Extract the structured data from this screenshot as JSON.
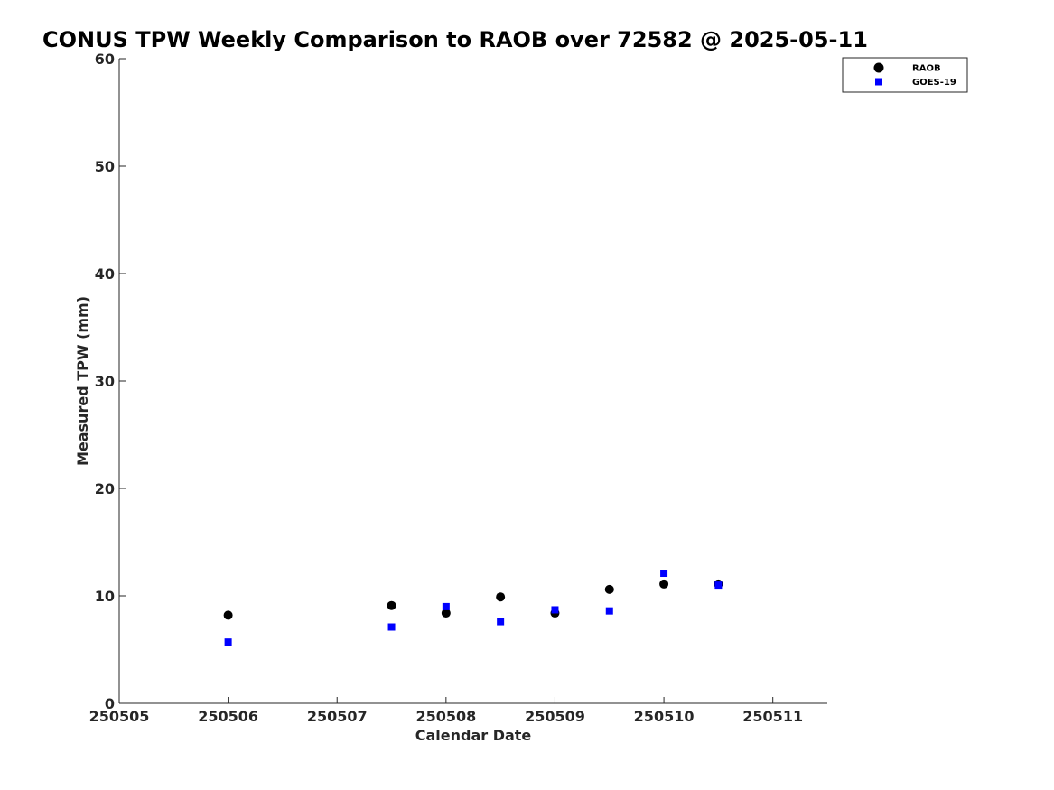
{
  "chart_data": {
    "type": "scatter",
    "title": "CONUS TPW Weekly Comparison to RAOB over 72582 @ 2025-05-11",
    "xlabel": "Calendar Date",
    "ylabel": "Measured TPW (mm)",
    "xlim": [
      250505,
      250511.5
    ],
    "ylim": [
      0,
      60
    ],
    "xticks": [
      250505,
      250506,
      250507,
      250508,
      250509,
      250510,
      250511
    ],
    "xtick_labels": [
      "250505",
      "250506",
      "250507",
      "250508",
      "250509",
      "250510",
      "250511"
    ],
    "yticks": [
      0,
      10,
      20,
      30,
      40,
      50,
      60
    ],
    "ytick_labels": [
      "0",
      "10",
      "20",
      "30",
      "40",
      "50",
      "60"
    ],
    "grid": false,
    "legend_position": "top-right",
    "series": [
      {
        "name": "RAOB",
        "marker": "circle",
        "color": "#000000",
        "x": [
          250506,
          250507.5,
          250508,
          250508.5,
          250509,
          250509.5,
          250510,
          250510.5
        ],
        "y": [
          8.2,
          9.1,
          8.4,
          9.9,
          8.4,
          10.6,
          11.1,
          11.1
        ]
      },
      {
        "name": "GOES-19",
        "marker": "square",
        "color": "#0000ff",
        "x": [
          250506,
          250507.5,
          250508,
          250508.5,
          250509,
          250509.5,
          250510,
          250510.5
        ],
        "y": [
          5.7,
          7.1,
          9.0,
          7.6,
          8.7,
          8.6,
          12.1,
          11.0
        ]
      }
    ]
  }
}
